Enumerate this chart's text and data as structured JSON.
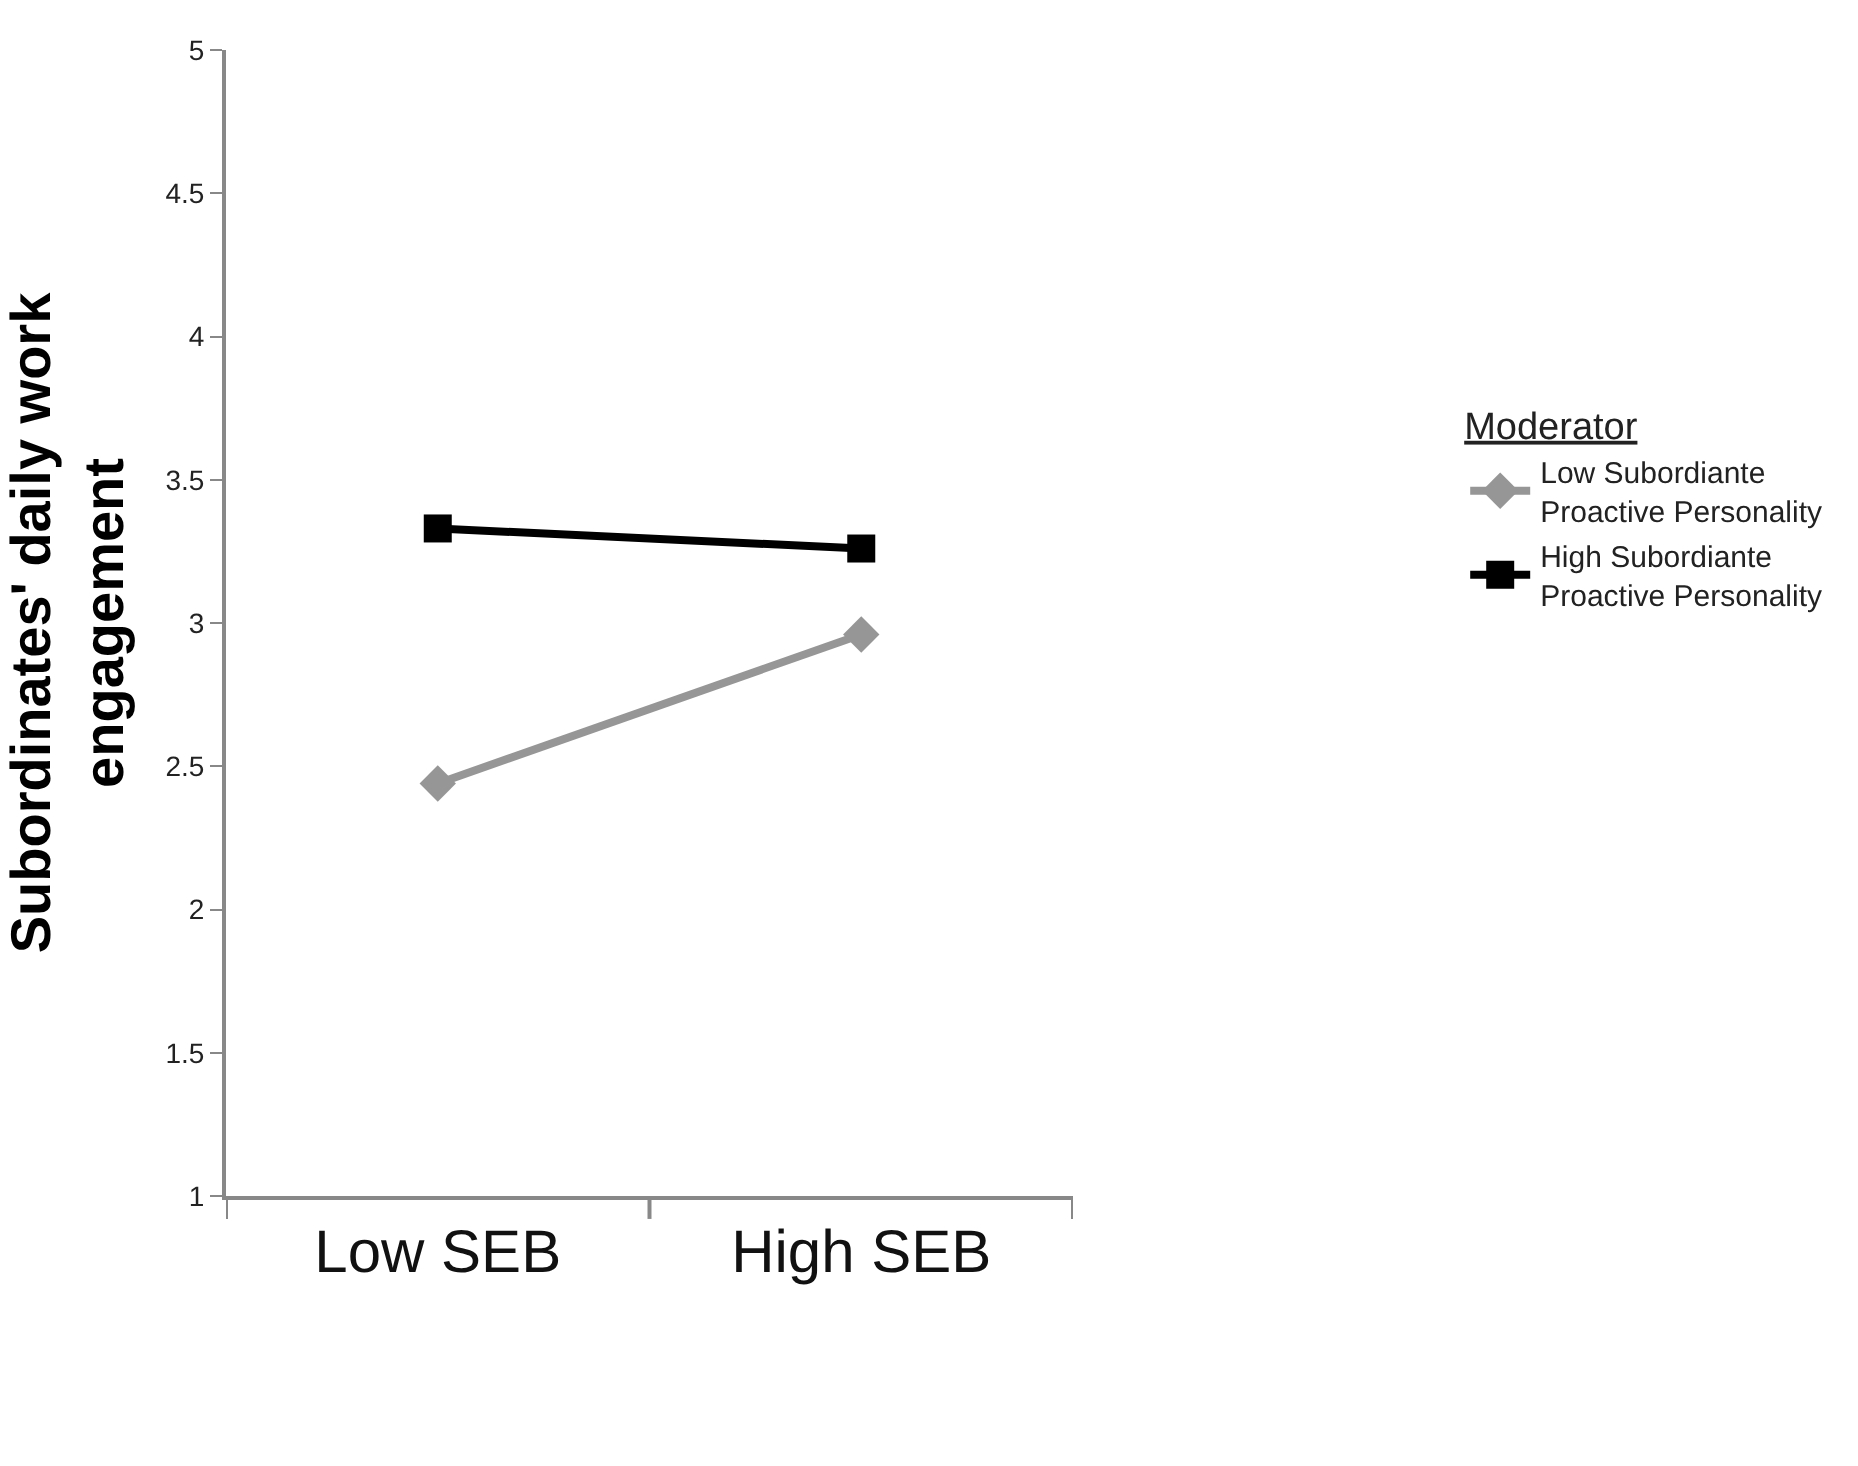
{
  "chart_data": {
    "type": "line",
    "categories": [
      "Low SEB",
      "High SEB"
    ],
    "ylabel": "Subordinates' daily work engagement",
    "legend_title": "Moderator",
    "series": [
      {
        "name": "Low Subordiante Proactive Personality",
        "color": "#969696",
        "values": [
          2.44,
          2.96
        ],
        "marker": "diamond"
      },
      {
        "name": "High Subordiante Proactive Personality",
        "color": "#000000",
        "values": [
          3.33,
          3.26
        ],
        "marker": "square"
      }
    ],
    "ylim": [
      1,
      5
    ],
    "yticks": [
      1,
      1.5,
      2,
      2.5,
      3,
      3.5,
      4,
      4.5,
      5
    ],
    "legend": "right",
    "line_style": "solid"
  }
}
